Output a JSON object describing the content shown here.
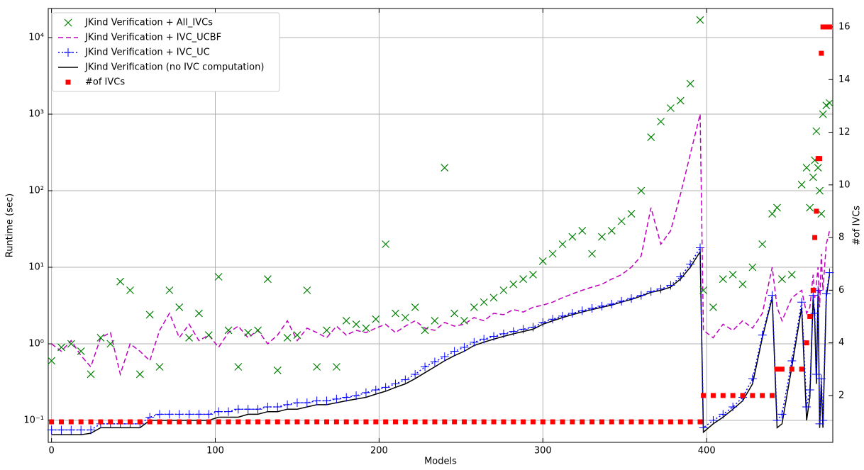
{
  "chart_data": {
    "type": "line",
    "xlabel": "Models",
    "ylabel": "Runtime (sec)",
    "y2label": "#of IVCs",
    "log_y": true,
    "grid": true,
    "legend": "upper left",
    "xlim": [
      -2,
      477
    ],
    "xticks": [
      0,
      100,
      200,
      300,
      400
    ],
    "ylim": [
      0.0516,
      24000
    ],
    "yticks": [
      {
        "value": 0.1,
        "label": "10⁻¹"
      },
      {
        "value": 1,
        "label": "10⁰"
      },
      {
        "value": 10,
        "label": "10¹"
      },
      {
        "value": 100,
        "label": "10²"
      },
      {
        "value": 1000,
        "label": "10³"
      },
      {
        "value": 10000,
        "label": "10⁴"
      }
    ],
    "y2lim": [
      0.22,
      16.7
    ],
    "y2ticks": [
      2,
      4,
      6,
      8,
      10,
      12,
      14,
      16
    ],
    "x": [
      0,
      6,
      12,
      18,
      24,
      30,
      36,
      42,
      48,
      54,
      60,
      66,
      72,
      78,
      84,
      90,
      96,
      102,
      108,
      114,
      120,
      126,
      132,
      138,
      144,
      150,
      156,
      162,
      168,
      174,
      180,
      186,
      192,
      198,
      204,
      210,
      216,
      222,
      228,
      234,
      240,
      246,
      252,
      258,
      264,
      270,
      276,
      282,
      288,
      294,
      300,
      306,
      312,
      318,
      324,
      330,
      336,
      342,
      348,
      354,
      360,
      366,
      372,
      378,
      384,
      390,
      396,
      398,
      404,
      410,
      416,
      422,
      428,
      434,
      440,
      443,
      446,
      452,
      458,
      461,
      463,
      465,
      466,
      467,
      468,
      469,
      470,
      471,
      473,
      475
    ],
    "series": [
      {
        "name": "JKind Verification + All_IVCs",
        "color": "#008000",
        "style": "x",
        "values": [
          0.6,
          0.9,
          1.0,
          0.8,
          0.4,
          1.2,
          1.0,
          6.5,
          5,
          0.4,
          2.4,
          0.5,
          5,
          3,
          1.2,
          2.5,
          1.3,
          7.5,
          1.5,
          0.5,
          1.4,
          1.5,
          7,
          0.45,
          1.2,
          1.3,
          5,
          0.5,
          1.5,
          0.5,
          2,
          1.8,
          1.6,
          2.1,
          20,
          2.5,
          2.2,
          3,
          1.5,
          2,
          200,
          2.5,
          2,
          3,
          3.5,
          4,
          5,
          6,
          7,
          8,
          12,
          15,
          20,
          25,
          30,
          15,
          25,
          30,
          40,
          50,
          100,
          500,
          800,
          1200,
          1500,
          2500,
          17000,
          5,
          3,
          7,
          8,
          6,
          10,
          20,
          50,
          60,
          7,
          8,
          120,
          200,
          60,
          150,
          250,
          600,
          200,
          100,
          50,
          1000,
          1300,
          1400
        ]
      },
      {
        "name": "JKind Verification + IVC_UCBF",
        "color": "#bf00bf",
        "style": "dashed",
        "values": [
          1.0,
          0.8,
          1.1,
          0.7,
          0.5,
          1.2,
          1.4,
          0.4,
          1.0,
          0.8,
          0.6,
          1.5,
          2.5,
          1.2,
          1.8,
          1.1,
          1.3,
          0.9,
          1.4,
          1.7,
          1.2,
          1.5,
          1.0,
          1.3,
          2.0,
          1.1,
          1.6,
          1.4,
          1.2,
          1.7,
          1.3,
          1.5,
          1.4,
          1.6,
          1.8,
          1.4,
          1.7,
          2.0,
          1.6,
          1.5,
          1.9,
          1.7,
          1.8,
          2.2,
          2.0,
          2.5,
          2.4,
          2.8,
          2.6,
          3.0,
          3.2,
          3.5,
          4.0,
          4.5,
          5.0,
          5.5,
          6,
          7,
          8,
          10,
          14,
          60,
          20,
          30,
          90,
          300,
          1000,
          1.5,
          1.2,
          1.8,
          1.5,
          2.0,
          1.6,
          2.5,
          10,
          3,
          2,
          4,
          5,
          2.5,
          3,
          8,
          4,
          6,
          10,
          3,
          15,
          5,
          20,
          30
        ]
      },
      {
        "name": "JKind Verification + IVC_UC",
        "color": "#0000ff",
        "style": "dotted-plus",
        "values": [
          0.075,
          0.075,
          0.075,
          0.075,
          0.075,
          0.09,
          0.09,
          0.09,
          0.09,
          0.09,
          0.11,
          0.12,
          0.12,
          0.12,
          0.12,
          0.12,
          0.12,
          0.13,
          0.13,
          0.14,
          0.14,
          0.14,
          0.15,
          0.15,
          0.16,
          0.17,
          0.17,
          0.18,
          0.18,
          0.19,
          0.2,
          0.21,
          0.23,
          0.25,
          0.27,
          0.3,
          0.34,
          0.4,
          0.5,
          0.58,
          0.68,
          0.8,
          0.9,
          1.05,
          1.15,
          1.25,
          1.35,
          1.45,
          1.55,
          1.65,
          1.9,
          2.1,
          2.3,
          2.5,
          2.7,
          2.9,
          3.1,
          3.3,
          3.6,
          3.9,
          4.3,
          4.8,
          5.2,
          5.8,
          7.5,
          11,
          18,
          0.08,
          0.1,
          0.12,
          0.15,
          0.2,
          0.35,
          1.3,
          4.3,
          0.1,
          0.12,
          0.6,
          3.5,
          0.15,
          0.25,
          4.3,
          2.5,
          0.4,
          5,
          0.09,
          0.35,
          0.1,
          4.5,
          8.5
        ]
      },
      {
        "name": "JKind Verification (no IVC computation)",
        "color": "#000000",
        "style": "solid",
        "values": [
          0.065,
          0.065,
          0.065,
          0.065,
          0.068,
          0.08,
          0.08,
          0.08,
          0.08,
          0.08,
          0.1,
          0.1,
          0.1,
          0.1,
          0.1,
          0.1,
          0.1,
          0.11,
          0.11,
          0.11,
          0.12,
          0.12,
          0.13,
          0.13,
          0.14,
          0.14,
          0.15,
          0.16,
          0.16,
          0.17,
          0.18,
          0.19,
          0.2,
          0.22,
          0.24,
          0.27,
          0.3,
          0.35,
          0.42,
          0.5,
          0.6,
          0.7,
          0.8,
          0.95,
          1.05,
          1.15,
          1.25,
          1.35,
          1.45,
          1.55,
          1.8,
          2.0,
          2.2,
          2.4,
          2.6,
          2.8,
          3.0,
          3.2,
          3.5,
          3.8,
          4.2,
          4.7,
          5.0,
          5.5,
          7,
          10,
          16,
          0.07,
          0.09,
          0.11,
          0.14,
          0.18,
          0.3,
          1.2,
          4,
          0.08,
          0.09,
          0.5,
          3,
          0.1,
          0.2,
          4,
          2,
          0.3,
          4.5,
          0.08,
          0.3,
          0.08,
          4,
          8
        ]
      },
      {
        "name": "#of IVCs",
        "color": "#ff0000",
        "style": "square",
        "axis": "y2",
        "values": [
          1,
          1,
          1,
          1,
          1,
          1,
          1,
          1,
          1,
          1,
          1,
          1,
          1,
          1,
          1,
          1,
          1,
          1,
          1,
          1,
          1,
          1,
          1,
          1,
          1,
          1,
          1,
          1,
          1,
          1,
          1,
          1,
          1,
          1,
          1,
          1,
          1,
          1,
          1,
          1,
          1,
          1,
          1,
          1,
          1,
          1,
          1,
          1,
          1,
          1,
          1,
          1,
          1,
          1,
          1,
          1,
          1,
          1,
          1,
          1,
          1,
          1,
          1,
          1,
          1,
          1,
          1,
          2,
          2,
          2,
          2,
          2,
          2,
          2,
          2,
          3,
          3,
          3,
          3,
          4,
          5,
          6,
          8,
          9,
          11,
          11,
          15,
          16,
          16,
          16
        ]
      }
    ]
  }
}
